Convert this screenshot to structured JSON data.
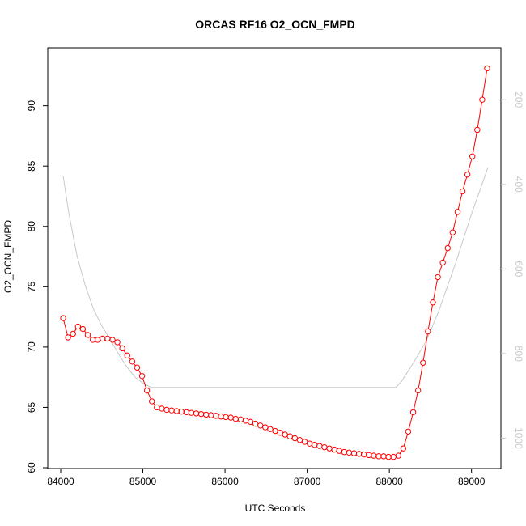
{
  "chart_data": {
    "type": "line",
    "title": "ORCAS RF16 O2_OCN_FMPD",
    "xlabel": "UTC Seconds",
    "ylabel": "O2_OCN_FMPD",
    "xlim": [
      84000,
      89200
    ],
    "ylim": [
      60,
      94
    ],
    "x_ticks": [
      84000,
      85000,
      86000,
      87000,
      88000,
      89000
    ],
    "y_ticks": [
      60,
      65,
      70,
      75,
      80,
      85,
      90
    ],
    "y2_ticks": [
      200,
      400,
      600,
      800,
      1000
    ],
    "y2_range_at_ylim": [
      1070,
      100
    ],
    "y2_color": "#c8c8c8",
    "grid": false,
    "series": [
      {
        "color": "#ff0000",
        "marker": "open-circle",
        "x": [
          84030,
          84090,
          84150,
          84210,
          84270,
          84330,
          84390,
          84450,
          84510,
          84570,
          84630,
          84690,
          84750,
          84810,
          84870,
          84930,
          84990,
          85050,
          85110,
          85170,
          85230,
          85290,
          85350,
          85410,
          85470,
          85530,
          85590,
          85650,
          85710,
          85770,
          85830,
          85890,
          85950,
          86010,
          86070,
          86130,
          86190,
          86250,
          86310,
          86370,
          86430,
          86490,
          86550,
          86610,
          86670,
          86730,
          86790,
          86850,
          86910,
          86970,
          87030,
          87090,
          87150,
          87210,
          87270,
          87330,
          87390,
          87450,
          87510,
          87570,
          87630,
          87690,
          87750,
          87810,
          87870,
          87930,
          87990,
          88050,
          88110,
          88170,
          88230,
          88290,
          88350,
          88410,
          88470,
          88530,
          88590,
          88650,
          88710,
          88770,
          88830,
          88890,
          88950,
          89010,
          89070,
          89130,
          89190
        ],
        "y": [
          72.4,
          70.8,
          71.1,
          71.7,
          71.5,
          71.0,
          70.6,
          70.6,
          70.7,
          70.7,
          70.6,
          70.4,
          69.9,
          69.3,
          68.8,
          68.3,
          67.6,
          66.4,
          65.5,
          65.0,
          64.9,
          64.8,
          64.75,
          64.7,
          64.65,
          64.6,
          64.55,
          64.5,
          64.45,
          64.4,
          64.35,
          64.3,
          64.25,
          64.2,
          64.15,
          64.05,
          64.0,
          63.9,
          63.8,
          63.65,
          63.5,
          63.35,
          63.2,
          63.05,
          62.9,
          62.75,
          62.6,
          62.45,
          62.3,
          62.15,
          62.0,
          61.9,
          61.8,
          61.7,
          61.6,
          61.5,
          61.4,
          61.3,
          61.25,
          61.2,
          61.15,
          61.1,
          61.05,
          61.0,
          60.95,
          60.95,
          60.9,
          60.9,
          61.0,
          61.6,
          63.0,
          64.6,
          66.4,
          68.7,
          71.3,
          73.7,
          75.8,
          77.0,
          78.2,
          79.5,
          81.2,
          82.9,
          84.3,
          85.8,
          88.0,
          90.5,
          93.1
        ]
      },
      {
        "color": "#c8c8c8",
        "axis": "right",
        "x": [
          84030,
          84100,
          84200,
          84300,
          84400,
          84500,
          84600,
          84700,
          84800,
          84900,
          85000,
          85100,
          85150,
          85200,
          86000,
          87000,
          88000,
          88080,
          88150,
          88300,
          88450,
          88600,
          88800,
          89000,
          89200
        ],
        "y2": [
          380,
          470,
          570,
          640,
          695,
          735,
          765,
          800,
          830,
          855,
          870,
          880,
          880,
          880,
          880,
          880,
          880,
          880,
          865,
          820,
          770,
          700,
          590,
          470,
          360
        ]
      }
    ]
  }
}
